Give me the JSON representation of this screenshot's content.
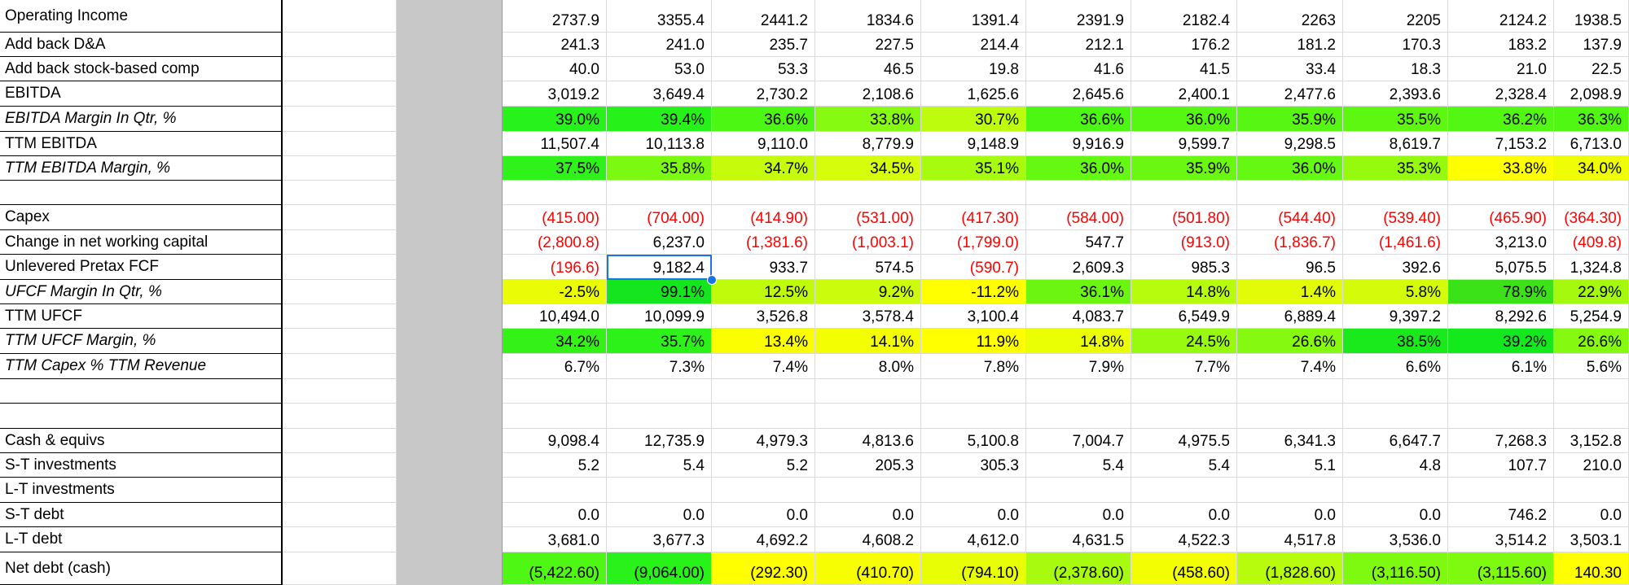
{
  "sheet": {
    "selected": {
      "row": 10,
      "col": 1
    },
    "rows": [
      {
        "label": "Operating Income",
        "italic": false,
        "values": [
          "2737.9",
          "3355.4",
          "2441.2",
          "1834.6",
          "1391.4",
          "2391.9",
          "2182.4",
          "2263",
          "2205",
          "2124.2",
          "1938.5"
        ],
        "colors": [],
        "red": false
      },
      {
        "label": "Add back D&A",
        "italic": false,
        "values": [
          "241.3",
          "241.0",
          "235.7",
          "227.5",
          "214.4",
          "212.1",
          "176.2",
          "181.2",
          "170.3",
          "183.2",
          "137.9"
        ],
        "colors": [],
        "red": false
      },
      {
        "label": "Add back stock-based comp",
        "italic": false,
        "values": [
          "40.0",
          "53.0",
          "53.3",
          "46.5",
          "19.8",
          "41.6",
          "41.5",
          "33.4",
          "18.3",
          "21.0",
          "22.5"
        ],
        "colors": [],
        "red": false
      },
      {
        "label": "EBITDA",
        "italic": false,
        "values": [
          "3,019.2",
          "3,649.4",
          "2,730.2",
          "2,108.6",
          "1,625.6",
          "2,645.6",
          "2,400.1",
          "2,477.6",
          "2,393.6",
          "2,328.4",
          "2,098.9"
        ],
        "colors": [],
        "red": false
      },
      {
        "label": "EBITDA Margin In Qtr, %",
        "italic": true,
        "values": [
          "39.0%",
          "39.4%",
          "36.6%",
          "33.8%",
          "30.7%",
          "36.6%",
          "36.0%",
          "35.9%",
          "35.5%",
          "36.2%",
          "36.3%"
        ],
        "colors": [
          "#27f21b",
          "#26f21a",
          "#4cf714",
          "#86fa10",
          "#bdfc0d",
          "#4cf714",
          "#55f713",
          "#57f713",
          "#5ef712",
          "#52f713",
          "#50f713"
        ],
        "red": false
      },
      {
        "label": "TTM EBITDA",
        "italic": false,
        "values": [
          "11,507.4",
          "10,113.8",
          "9,110.0",
          "8,779.9",
          "9,148.9",
          "9,916.9",
          "9,599.7",
          "9,298.5",
          "8,619.7",
          "7,153.2",
          "6,713.0"
        ],
        "colors": [],
        "red": false
      },
      {
        "label": "TTM EBITDA Margin, %",
        "italic": true,
        "values": [
          "37.5%",
          "35.8%",
          "34.7%",
          "34.5%",
          "35.1%",
          "36.0%",
          "35.9%",
          "36.0%",
          "35.3%",
          "33.8%",
          "34.0%"
        ],
        "colors": [
          "#2ef219",
          "#7cf910",
          "#c6fc0c",
          "#d6fd0b",
          "#a6fb0e",
          "#64f812",
          "#6af812",
          "#64f812",
          "#96fa0f",
          "#ffff00",
          "#f0fe05"
        ],
        "red": false
      },
      {
        "label": "",
        "italic": false,
        "values": [
          "",
          "",
          "",
          "",
          "",
          "",
          "",
          "",
          "",
          "",
          ""
        ],
        "colors": [],
        "red": false
      },
      {
        "label": "Capex",
        "italic": false,
        "values": [
          "(415.00)",
          "(704.00)",
          "(414.90)",
          "(531.00)",
          "(417.30)",
          "(584.00)",
          "(501.80)",
          "(544.40)",
          "(539.40)",
          "(465.90)",
          "(364.30)"
        ],
        "colors": [],
        "red": true
      },
      {
        "label": "Change in net working capital",
        "italic": false,
        "values": [
          "(2,800.8)",
          "6,237.0",
          "(1,381.6)",
          "(1,003.1)",
          "(1,799.0)",
          "547.7",
          "(913.0)",
          "(1,836.7)",
          "(1,461.6)",
          "3,213.0",
          "(409.8)"
        ],
        "colors": [],
        "red": "paren"
      },
      {
        "label": "Unlevered Pretax FCF",
        "italic": false,
        "values": [
          "(196.6)",
          "9,182.4",
          "933.7",
          "574.5",
          "(590.7)",
          "2,609.3",
          "985.3",
          "96.5",
          "392.6",
          "5,075.5",
          "1,324.8"
        ],
        "colors": [],
        "red": "paren"
      },
      {
        "label": "UFCF Margin In Qtr, %",
        "italic": true,
        "values": [
          "-2.5%",
          "99.1%",
          "12.5%",
          "9.2%",
          "-11.2%",
          "36.1%",
          "14.8%",
          "1.4%",
          "5.8%",
          "78.9%",
          "22.9%"
        ],
        "colors": [
          "#eafc06",
          "#14e51e",
          "#c0fb0c",
          "#cbfc0b",
          "#ffff00",
          "#6cf511",
          "#b7fb0d",
          "#e2fc08",
          "#d4fc0a",
          "#3ce218",
          "#a4f90e"
        ],
        "red": false
      },
      {
        "label": "TTM UFCF",
        "italic": false,
        "values": [
          "10,494.0",
          "10,099.9",
          "3,526.8",
          "3,578.4",
          "3,100.4",
          "4,083.7",
          "6,549.9",
          "6,889.4",
          "9,397.2",
          "8,292.6",
          "5,254.9"
        ],
        "colors": [],
        "red": false
      },
      {
        "label": "TTM UFCF Margin, %",
        "italic": true,
        "values": [
          "34.2%",
          "35.7%",
          "13.4%",
          "14.1%",
          "11.9%",
          "14.8%",
          "24.5%",
          "26.6%",
          "38.5%",
          "39.2%",
          "26.6%"
        ],
        "colors": [
          "#34f217",
          "#2cf219",
          "#fbfe01",
          "#f3fe03",
          "#ffff00",
          "#eafe04",
          "#98fa0e",
          "#86f910",
          "#1aea1c",
          "#14e91e",
          "#86f910"
        ],
        "red": false
      },
      {
        "label": "TTM Capex % TTM Revenue",
        "italic": true,
        "values": [
          "6.7%",
          "7.3%",
          "7.4%",
          "8.0%",
          "7.8%",
          "7.9%",
          "7.7%",
          "7.4%",
          "6.6%",
          "6.1%",
          "5.6%"
        ],
        "colors": [],
        "red": false
      },
      {
        "label": "",
        "italic": false,
        "values": [
          "",
          "",
          "",
          "",
          "",
          "",
          "",
          "",
          "",
          "",
          ""
        ],
        "colors": [],
        "red": false
      },
      {
        "label": "",
        "italic": false,
        "values": [
          "",
          "",
          "",
          "",
          "",
          "",
          "",
          "",
          "",
          "",
          ""
        ],
        "colors": [],
        "red": false
      },
      {
        "label": "Cash & equivs",
        "italic": false,
        "values": [
          "9,098.4",
          "12,735.9",
          "4,979.3",
          "4,813.6",
          "5,100.8",
          "7,004.7",
          "4,975.5",
          "6,341.3",
          "6,647.7",
          "7,268.3",
          "3,152.8"
        ],
        "colors": [],
        "red": false
      },
      {
        "label": "S-T investments",
        "italic": false,
        "values": [
          "5.2",
          "5.4",
          "5.2",
          "205.3",
          "305.3",
          "5.4",
          "5.4",
          "5.1",
          "4.8",
          "107.7",
          "210.0"
        ],
        "colors": [],
        "red": false
      },
      {
        "label": "L-T investments",
        "italic": false,
        "values": [
          "",
          "",
          "",
          "",
          "",
          "",
          "",
          "",
          "",
          "",
          ""
        ],
        "colors": [],
        "red": false
      },
      {
        "label": "S-T debt",
        "italic": false,
        "values": [
          "0.0",
          "0.0",
          "0.0",
          "0.0",
          "0.0",
          "0.0",
          "0.0",
          "0.0",
          "0.0",
          "746.2",
          "0.0"
        ],
        "colors": [],
        "red": false
      },
      {
        "label": "L-T debt",
        "italic": false,
        "values": [
          "3,681.0",
          "3,677.3",
          "4,692.2",
          "4,608.2",
          "4,612.0",
          "4,631.5",
          "4,522.3",
          "4,517.8",
          "3,536.0",
          "3,514.2",
          "3,503.1"
        ],
        "colors": [],
        "red": false
      },
      {
        "label": "Net debt (cash)",
        "italic": false,
        "values": [
          "(5,422.60)",
          "(9,064.00)",
          "(292.30)",
          "(410.70)",
          "(794.10)",
          "(2,378.60)",
          "(458.60)",
          "(1,828.60)",
          "(3,116.50)",
          "(3,115.60)",
          "140.30"
        ],
        "colors": [
          "#4ef714",
          "#28f21a",
          "#ffff00",
          "#f8fe02",
          "#e7fe05",
          "#a8fb0e",
          "#f3fe03",
          "#b8fc0d",
          "#7ef910",
          "#7ef910",
          "#ffff00"
        ],
        "red": false
      }
    ]
  }
}
